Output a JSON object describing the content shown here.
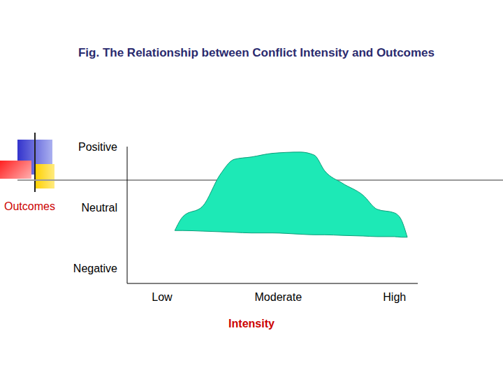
{
  "chart_data": {
    "type": "area",
    "title": "Fig. The Relationship between Conflict Intensity and Outcomes",
    "x_label": "Intensity",
    "y_label": "Outcomes",
    "x": [
      0.11,
      0.18,
      0.35,
      0.5,
      0.62,
      0.77,
      0.95,
      1.19,
      1.31,
      1.4,
      1.55,
      1.73,
      1.85,
      2.0,
      2.06,
      2.11
    ],
    "values": [
      -0.38,
      -0.15,
      0.02,
      0.54,
      0.79,
      0.83,
      0.89,
      0.91,
      0.86,
      0.6,
      0.4,
      0.2,
      -0.03,
      -0.09,
      -0.21,
      -0.49
    ],
    "lower": [
      -0.38,
      -0.38,
      -0.39,
      -0.4,
      -0.41,
      -0.42,
      -0.42,
      -0.44,
      -0.45,
      -0.45,
      -0.46,
      -0.47,
      -0.48,
      -0.48,
      -0.49,
      -0.49
    ],
    "color": "#1de9b6",
    "xlim": [
      -0.3,
      2.2
    ],
    "xticks": [
      {
        "value": 0,
        "label": "Low"
      },
      {
        "value": 1,
        "label": "Moderate"
      },
      {
        "value": 2,
        "label": "High"
      }
    ],
    "ylim": [
      -1.25,
      1
    ],
    "yticks": [
      {
        "value": -1,
        "label": "Negative"
      },
      {
        "value": 0,
        "label": "Neutral"
      },
      {
        "value": 1,
        "label": "Positive"
      }
    ],
    "grid": false
  }
}
